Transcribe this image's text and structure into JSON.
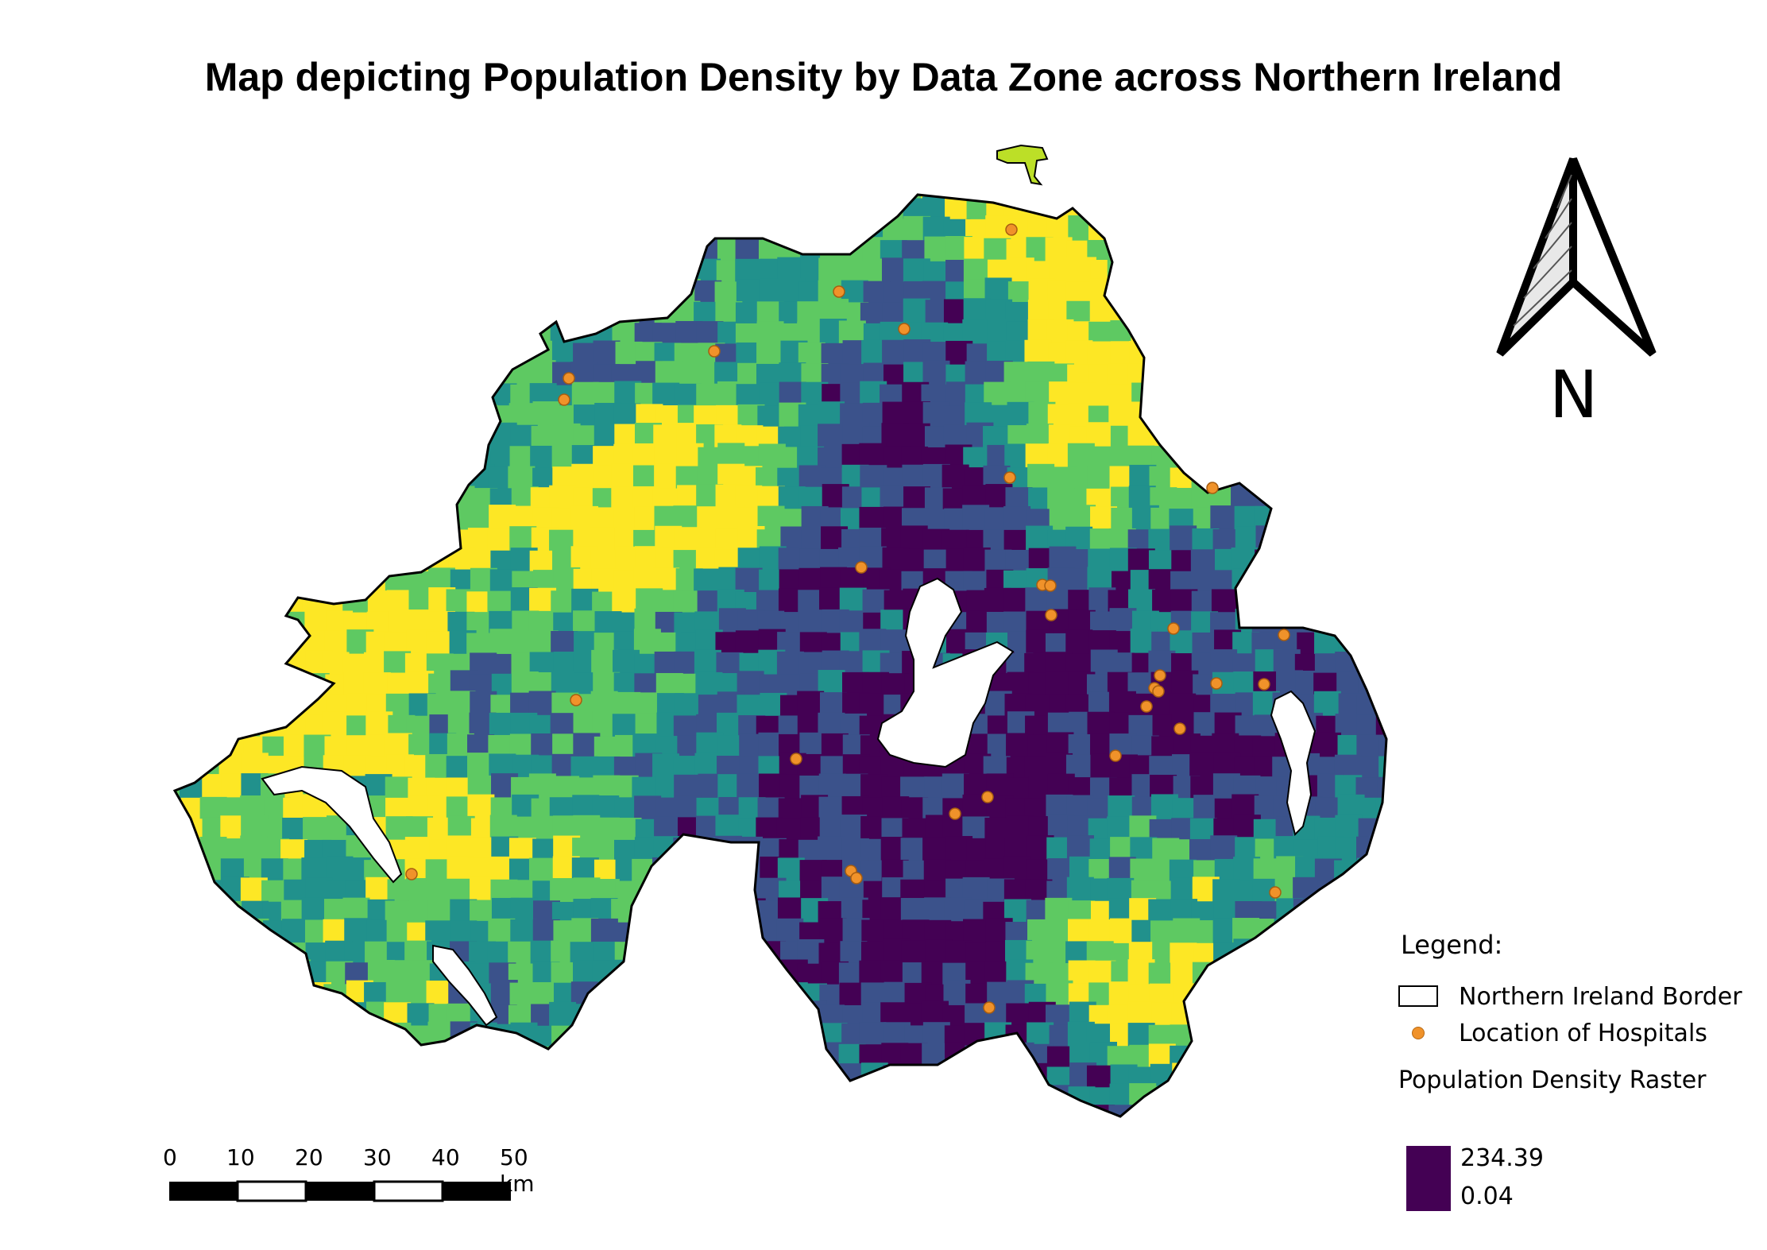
{
  "title": "Map depicting Population Density by Data Zone across Northern Ireland",
  "north_arrow": {
    "label": "N"
  },
  "legend": {
    "heading": "Legend:",
    "items": [
      {
        "type": "outline",
        "label": "Northern Ireland Border"
      },
      {
        "type": "point",
        "label": "Location of Hospitals",
        "color": "#f0922a"
      },
      {
        "type": "raster-heading",
        "label": "Population Density Raster"
      }
    ],
    "raster": {
      "max_label": "234.39",
      "min_label": "0.04",
      "color": "#440154"
    }
  },
  "scale_bar": {
    "ticks": [
      "0",
      "10",
      "20",
      "30",
      "40",
      "50 km"
    ]
  },
  "colors": {
    "viridis": [
      "#440154",
      "#3b528b",
      "#21918c",
      "#5ec962",
      "#fde725"
    ],
    "hospital": "#f0922a",
    "water": "#ffffff",
    "border": "#000000"
  }
}
